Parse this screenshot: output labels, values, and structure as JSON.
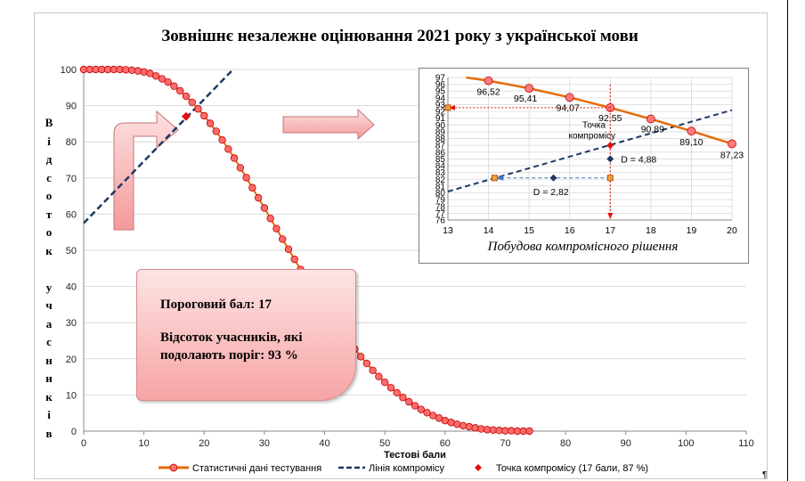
{
  "chart_data": [
    {
      "type": "line",
      "title": "Зовнішнє незалежне оцінювання 2021 року з української мови",
      "xlabel": "Тестові бали",
      "ylabel": "Відсоток учасників",
      "xlim": [
        0,
        110
      ],
      "ylim": [
        0,
        100
      ],
      "x_ticks": [
        "0",
        "10",
        "20",
        "30",
        "40",
        "50",
        "60",
        "70",
        "80",
        "90",
        "100",
        "110"
      ],
      "y_ticks": [
        "0",
        "10",
        "20",
        "30",
        "40",
        "50",
        "60",
        "70",
        "80",
        "90",
        "100"
      ],
      "grid": "horizontal",
      "legend_position": "bottom",
      "series": [
        {
          "name": "Статистичні дані тестування",
          "color": "#e46c0a",
          "marker_color": "#ff6b6b",
          "x": [
            0,
            1,
            2,
            3,
            4,
            5,
            6,
            7,
            8,
            9,
            10,
            11,
            12,
            13,
            14,
            15,
            16,
            17,
            18,
            19,
            20,
            21,
            22,
            23,
            24,
            25,
            26,
            27,
            28,
            29,
            30,
            31,
            32,
            33,
            34,
            35,
            36,
            37,
            38,
            39,
            40,
            41,
            42,
            43,
            44,
            45,
            46,
            47,
            48,
            49,
            50,
            51,
            52,
            53,
            54,
            55,
            56,
            57,
            58,
            59,
            60,
            61,
            62,
            63,
            64,
            65,
            66,
            67,
            68,
            69,
            70,
            71,
            72,
            73,
            74
          ],
          "y": [
            100,
            100,
            100,
            100,
            100,
            100,
            100,
            99.9,
            99.8,
            99.6,
            99.3,
            98.9,
            98.2,
            97.4,
            96.5,
            95.4,
            94.1,
            92.6,
            90.9,
            89.1,
            87.2,
            85.1,
            82.9,
            80.5,
            78.0,
            75.5,
            72.8,
            70.1,
            67.3,
            64.5,
            61.7,
            58.8,
            56.0,
            53.1,
            50.3,
            47.5,
            44.7,
            42.0,
            39.3,
            36.7,
            34.2,
            31.7,
            29.3,
            27.0,
            24.8,
            22.7,
            20.6,
            18.7,
            16.8,
            15.1,
            13.5,
            12.0,
            10.6,
            9.3,
            8.1,
            7.0,
            6.0,
            5.1,
            4.3,
            3.6,
            2.9,
            2.4,
            1.9,
            1.5,
            1.2,
            0.9,
            0.6,
            0.4,
            0.3,
            0.2,
            0.1,
            0.1,
            0,
            0,
            0
          ]
        },
        {
          "name": "Лінія компромісу",
          "color": "#1f3864",
          "x": [
            0,
            24.8
          ],
          "y": [
            57.5,
            100
          ]
        },
        {
          "name": "Точка компромісу (17 бали, 87 %)",
          "color": "#e01010",
          "x": [
            17
          ],
          "y": [
            87
          ]
        }
      ],
      "annotations": {
        "threshold_label": "Пороговий бал: 17",
        "percent_label": "Відсоток учасників, які подолають поріг:  93 %"
      }
    },
    {
      "type": "line",
      "title": "Побудова компромісного рішення",
      "xlim": [
        13,
        20
      ],
      "ylim": [
        76,
        97
      ],
      "x_ticks": [
        "13",
        "14",
        "15",
        "16",
        "17",
        "18",
        "19",
        "20"
      ],
      "y_ticks": [
        "76",
        "77",
        "78",
        "79",
        "80",
        "81",
        "82",
        "83",
        "84",
        "85",
        "86",
        "87",
        "88",
        "89",
        "90",
        "91",
        "92",
        "93",
        "94",
        "95",
        "96",
        "97"
      ],
      "grid": "both",
      "series": [
        {
          "name": "Статистичні дані тестування",
          "color": "#e46c0a",
          "x": [
            14,
            15,
            16,
            17,
            18,
            19,
            20
          ],
          "y": [
            96.52,
            95.41,
            94.07,
            92.55,
            90.89,
            89.1,
            87.23
          ],
          "labels": [
            "96,52",
            "95,41",
            "94,07",
            "92,55",
            "90,89",
            "89,10",
            "87,23"
          ]
        },
        {
          "name": "Лінія компромісу",
          "color": "#1f3864",
          "x": [
            13,
            20
          ],
          "y": [
            80.2,
            92.2
          ]
        }
      ],
      "annotations": {
        "compromise_point": "Точка компромісу",
        "d1": "D = 4,88",
        "d2": "D = 2,82"
      }
    }
  ]
}
